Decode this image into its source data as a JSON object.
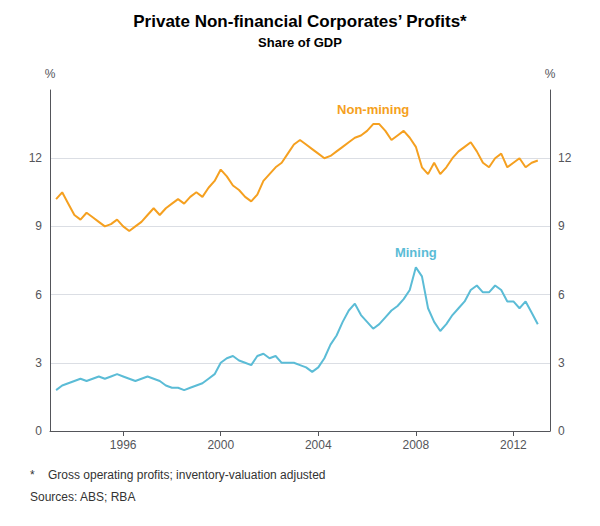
{
  "chart_data": {
    "type": "line",
    "title": "Private Non-financial Corporates’ Profits*",
    "subtitle": "Share of GDP",
    "ylabel": "%",
    "y2label": "%",
    "footnotes": [
      "*    Gross operating profits; inventory-valuation adjusted",
      "Sources: ABS; RBA"
    ],
    "x": [
      1993.25,
      1993.5,
      1993.75,
      1994.0,
      1994.25,
      1994.5,
      1994.75,
      1995.0,
      1995.25,
      1995.5,
      1995.75,
      1996.0,
      1996.25,
      1996.5,
      1996.75,
      1997.0,
      1997.25,
      1997.5,
      1997.75,
      1998.0,
      1998.25,
      1998.5,
      1998.75,
      1999.0,
      1999.25,
      1999.5,
      1999.75,
      2000.0,
      2000.25,
      2000.5,
      2000.75,
      2001.0,
      2001.25,
      2001.5,
      2001.75,
      2002.0,
      2002.25,
      2002.5,
      2002.75,
      2003.0,
      2003.25,
      2003.5,
      2003.75,
      2004.0,
      2004.25,
      2004.5,
      2004.75,
      2005.0,
      2005.25,
      2005.5,
      2005.75,
      2006.0,
      2006.25,
      2006.5,
      2006.75,
      2007.0,
      2007.25,
      2007.5,
      2007.75,
      2008.0,
      2008.25,
      2008.5,
      2008.75,
      2009.0,
      2009.25,
      2009.5,
      2009.75,
      2010.0,
      2010.25,
      2010.5,
      2010.75,
      2011.0,
      2011.25,
      2011.5,
      2011.75,
      2012.0,
      2012.25,
      2012.5,
      2012.75,
      2013.0
    ],
    "series": [
      {
        "name": "Non-mining",
        "color": "#F5A020",
        "values": [
          10.2,
          10.5,
          10.0,
          9.5,
          9.3,
          9.6,
          9.4,
          9.2,
          9.0,
          9.1,
          9.3,
          9.0,
          8.8,
          9.0,
          9.2,
          9.5,
          9.8,
          9.5,
          9.8,
          10.0,
          10.2,
          10.0,
          10.3,
          10.5,
          10.3,
          10.7,
          11.0,
          11.5,
          11.2,
          10.8,
          10.6,
          10.3,
          10.1,
          10.4,
          11.0,
          11.3,
          11.6,
          11.8,
          12.2,
          12.6,
          12.8,
          12.6,
          12.4,
          12.2,
          12.0,
          12.1,
          12.3,
          12.5,
          12.7,
          12.9,
          13.0,
          13.2,
          13.5,
          13.5,
          13.2,
          12.8,
          13.0,
          13.2,
          12.9,
          12.5,
          11.6,
          11.3,
          11.8,
          11.3,
          11.6,
          12.0,
          12.3,
          12.5,
          12.7,
          12.3,
          11.8,
          11.6,
          12.0,
          12.2,
          11.6,
          11.8,
          12.0,
          11.6,
          11.8,
          11.9
        ]
      },
      {
        "name": "Mining",
        "color": "#5BBCD6",
        "values": [
          1.8,
          2.0,
          2.1,
          2.2,
          2.3,
          2.2,
          2.3,
          2.4,
          2.3,
          2.4,
          2.5,
          2.4,
          2.3,
          2.2,
          2.3,
          2.4,
          2.3,
          2.2,
          2.0,
          1.9,
          1.9,
          1.8,
          1.9,
          2.0,
          2.1,
          2.3,
          2.5,
          3.0,
          3.2,
          3.3,
          3.1,
          3.0,
          2.9,
          3.3,
          3.4,
          3.2,
          3.3,
          3.0,
          3.0,
          3.0,
          2.9,
          2.8,
          2.6,
          2.8,
          3.2,
          3.8,
          4.2,
          4.8,
          5.3,
          5.6,
          5.1,
          4.8,
          4.5,
          4.7,
          5.0,
          5.3,
          5.5,
          5.8,
          6.2,
          7.2,
          6.8,
          5.4,
          4.8,
          4.4,
          4.7,
          5.1,
          5.4,
          5.7,
          6.2,
          6.4,
          6.1,
          6.1,
          6.4,
          6.2,
          5.7,
          5.7,
          5.4,
          5.7,
          5.2,
          4.7
        ]
      }
    ],
    "xlim": [
      1993.0,
      2013.5
    ],
    "xticks": [
      1996,
      2000,
      2004,
      2008,
      2012
    ],
    "ylim": [
      0,
      15
    ],
    "yticks": [
      0,
      3,
      6,
      9,
      12
    ],
    "y2lim": [
      0,
      15
    ],
    "y2ticks": [
      0,
      3,
      6,
      9,
      12
    ],
    "grid": true
  }
}
